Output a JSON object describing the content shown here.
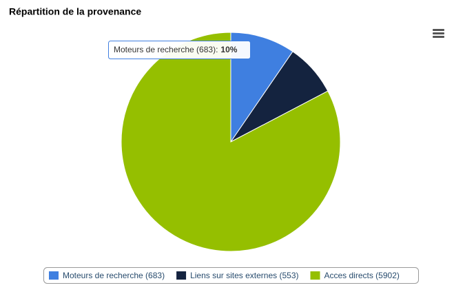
{
  "chart_data": {
    "type": "pie",
    "title": "Répartition de la provenance",
    "categories": [
      "Moteurs de recherche (683)",
      "Liens sur sites externes (553)",
      "Acces directs (5902)"
    ],
    "values": [
      683,
      553,
      5902
    ],
    "colors": [
      "#3f7fe0",
      "#14233f",
      "#95bf00"
    ],
    "legend": "bottom",
    "tooltip": {
      "label": "Moteurs de recherche (683):",
      "value": "10%"
    }
  }
}
